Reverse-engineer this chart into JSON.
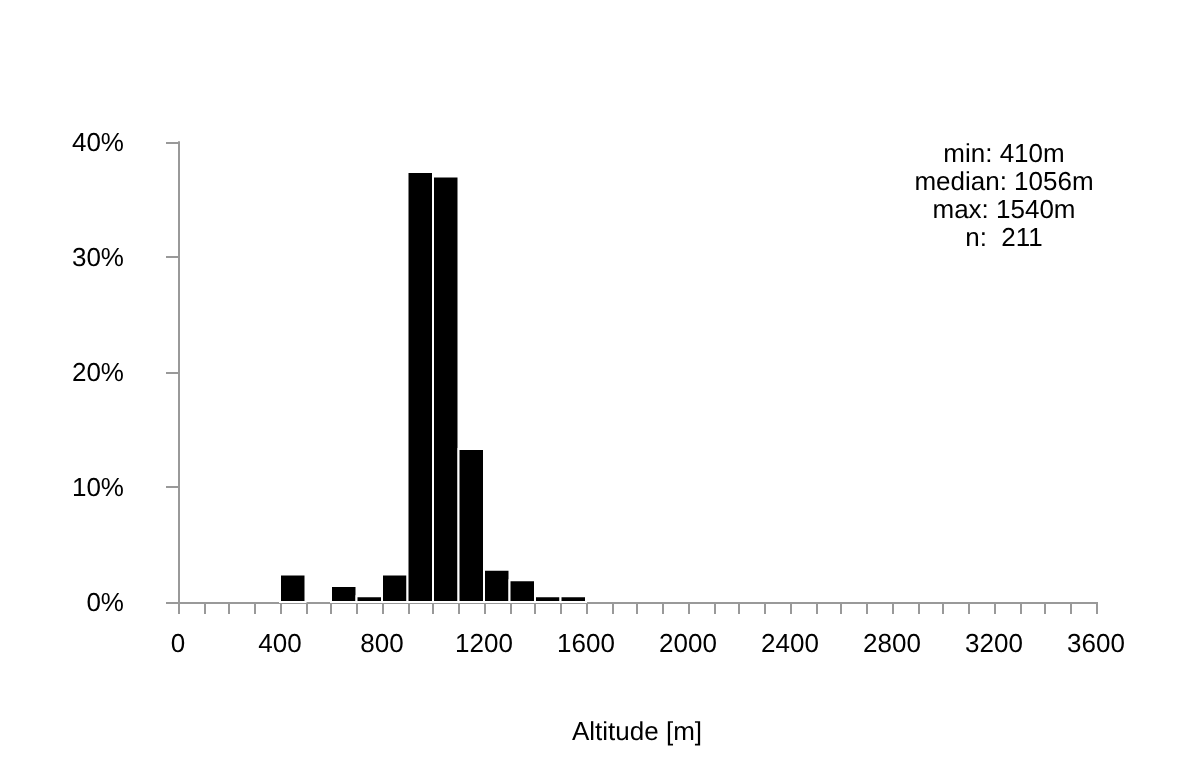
{
  "chart_data": {
    "type": "histogram",
    "xlabel": "Altitude [m]",
    "bins": [
      0,
      100,
      200,
      300,
      400,
      500,
      600,
      700,
      800,
      900,
      1000,
      1100,
      1200,
      1300,
      1400,
      1500,
      1600,
      1700,
      1800,
      1900,
      2000,
      2100,
      2200,
      2300,
      2400,
      2500,
      2600,
      2700,
      2800,
      2900,
      3000,
      3100,
      3200,
      3300,
      3400,
      3500,
      3600
    ],
    "values": [
      0,
      0,
      0,
      0,
      2.4,
      0,
      1.4,
      0.5,
      2.4,
      37.4,
      37.0,
      13.3,
      2.8,
      1.9,
      0.5,
      0.5,
      0,
      0,
      0,
      0,
      0,
      0,
      0,
      0,
      0,
      0,
      0,
      0,
      0,
      0,
      0,
      0,
      0,
      0,
      0,
      0
    ],
    "color": "#000000",
    "xlim": [
      0,
      3600
    ],
    "ylim": [
      0,
      40
    ],
    "xticks": [
      0,
      {
        "value": 100,
        "label": null
      },
      {
        "value": 200,
        "label": null
      },
      {
        "value": 300,
        "label": null
      },
      400,
      {
        "value": 500,
        "label": null
      },
      {
        "value": 600,
        "label": null
      },
      {
        "value": 700,
        "label": null
      },
      800,
      {
        "value": 900,
        "label": null
      },
      {
        "value": 1000,
        "label": null
      },
      {
        "value": 1100,
        "label": null
      },
      1200,
      {
        "value": 1300,
        "label": null
      },
      {
        "value": 1400,
        "label": null
      },
      {
        "value": 1500,
        "label": null
      },
      1600,
      {
        "value": 1700,
        "label": null
      },
      {
        "value": 1800,
        "label": null
      },
      {
        "value": 1900,
        "label": null
      },
      2000,
      {
        "value": 2100,
        "label": null
      },
      {
        "value": 2200,
        "label": null
      },
      {
        "value": 2300,
        "label": null
      },
      2400,
      {
        "value": 2500,
        "label": null
      },
      {
        "value": 2600,
        "label": null
      },
      {
        "value": 2700,
        "label": null
      },
      2800,
      {
        "value": 2900,
        "label": null
      },
      {
        "value": 3000,
        "label": null
      },
      {
        "value": 3100,
        "label": null
      },
      3200,
      {
        "value": 3300,
        "label": null
      },
      {
        "value": 3400,
        "label": null
      },
      {
        "value": 3500,
        "label": null
      },
      3600
    ],
    "yticks": [
      {
        "value": 0,
        "label": "0%"
      },
      {
        "value": 10,
        "label": "10%"
      },
      {
        "value": 20,
        "label": "20%"
      },
      {
        "value": 30,
        "label": "30%"
      },
      {
        "value": 40,
        "label": "40%"
      }
    ],
    "grid": false,
    "annotations": [
      "min: 410m",
      "median: 1056m",
      "max: 1540m",
      "n:  211"
    ]
  }
}
